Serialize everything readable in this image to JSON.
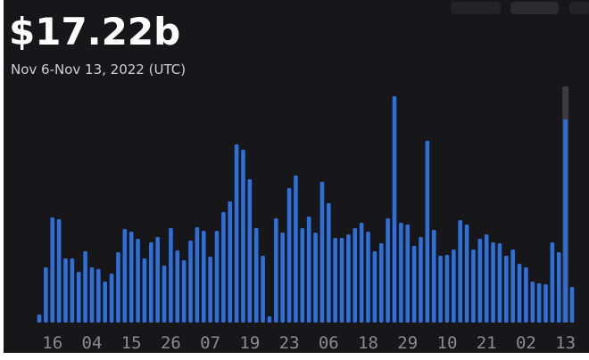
{
  "chart_data": {
    "type": "bar",
    "title": "$17.22b",
    "subtitle": "Nov 6-Nov 13, 2022 (UTC)",
    "color": "#2f6fd8",
    "categories": [
      null,
      null,
      "16",
      null,
      null,
      null,
      null,
      null,
      "04",
      null,
      null,
      null,
      null,
      null,
      "15",
      null,
      null,
      null,
      null,
      null,
      "26",
      null,
      null,
      null,
      null,
      null,
      "07",
      null,
      null,
      null,
      null,
      null,
      "19",
      null,
      null,
      null,
      null,
      null,
      "23",
      null,
      null,
      null,
      null,
      null,
      "06",
      null,
      null,
      null,
      null,
      null,
      "18",
      null,
      null,
      null,
      null,
      null,
      "29",
      null,
      null,
      null,
      null,
      null,
      "10",
      null,
      null,
      null,
      null,
      null,
      "21",
      null,
      null,
      null,
      null,
      null,
      "02",
      null,
      null,
      null,
      null,
      null,
      "13",
      null
    ],
    "values": [
      9,
      62,
      118,
      116,
      72,
      72,
      57,
      80,
      62,
      60,
      46,
      55,
      79,
      105,
      102,
      94,
      72,
      90,
      96,
      64,
      106,
      81,
      70,
      92,
      107,
      103,
      74,
      103,
      124,
      136,
      200,
      194,
      161,
      106,
      75,
      7,
      117,
      101,
      151,
      165,
      106,
      119,
      101,
      158,
      134,
      95,
      95,
      99,
      106,
      112,
      102,
      80,
      89,
      117,
      254,
      112,
      110,
      86,
      96,
      204,
      104,
      75,
      76,
      82,
      115,
      110,
      82,
      94,
      99,
      90,
      89,
      75,
      82,
      66,
      62,
      46,
      44,
      43,
      90,
      79,
      228,
      40
    ]
  }
}
